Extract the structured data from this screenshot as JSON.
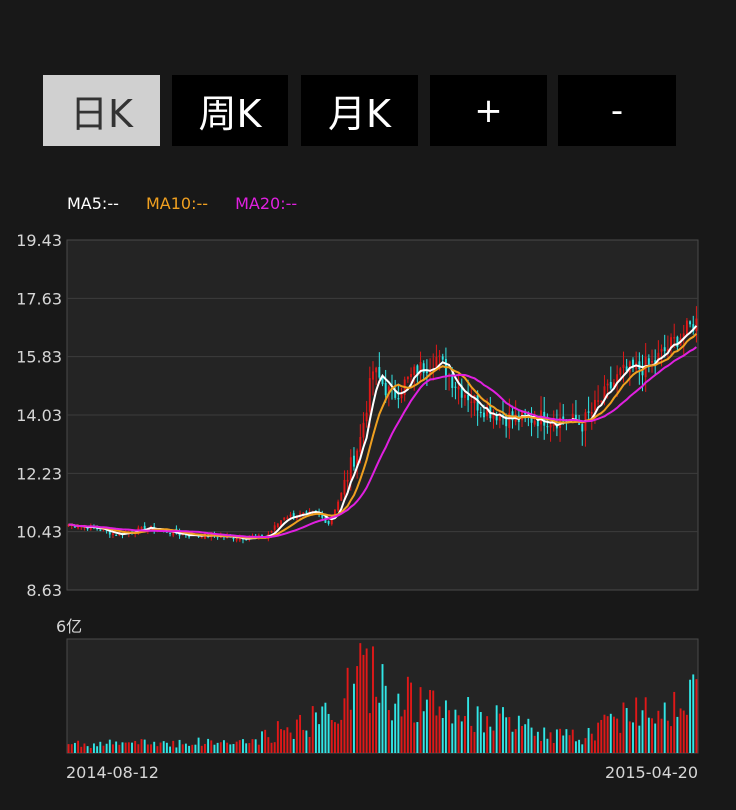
{
  "tabs": [
    {
      "label": "日K",
      "active": true
    },
    {
      "label": "周K",
      "active": false
    },
    {
      "label": "月K",
      "active": false
    },
    {
      "label": "+",
      "active": false
    },
    {
      "label": "-",
      "active": false
    }
  ],
  "legend": {
    "ma5": {
      "label": "MA5:--",
      "color": "#ffffff"
    },
    "ma10": {
      "label": "MA10:--",
      "color": "#f0a020"
    },
    "ma20": {
      "label": "MA20:--",
      "color": "#e020e0"
    }
  },
  "colors": {
    "up": "#e01818",
    "down": "#30e6e6",
    "grid": "#3c3c3c",
    "panel": "#242424",
    "border": "#4a4a4a"
  },
  "chart_data": {
    "type": "candlestick",
    "price_axis": {
      "ticks": [
        "19.43",
        "17.63",
        "15.83",
        "14.03",
        "12.23",
        "10.43",
        "8.63"
      ],
      "ylim": [
        8.63,
        19.43
      ]
    },
    "volume_axis": {
      "max_label": "6亿"
    },
    "x_labels": {
      "start": "2014-08-12",
      "end": "2015-04-20"
    },
    "close_anchors": [
      [
        0,
        10.65
      ],
      [
        8,
        10.55
      ],
      [
        15,
        10.35
      ],
      [
        25,
        10.55
      ],
      [
        35,
        10.35
      ],
      [
        45,
        10.3
      ],
      [
        55,
        10.25
      ],
      [
        62,
        10.25
      ],
      [
        68,
        10.9
      ],
      [
        78,
        11.0
      ],
      [
        82,
        10.7
      ],
      [
        86,
        11.6
      ],
      [
        92,
        13.3
      ],
      [
        96,
        15.4
      ],
      [
        102,
        14.6
      ],
      [
        110,
        15.4
      ],
      [
        116,
        15.8
      ],
      [
        122,
        15.0
      ],
      [
        130,
        14.3
      ],
      [
        140,
        13.9
      ],
      [
        150,
        13.95
      ],
      [
        158,
        13.85
      ],
      [
        162,
        13.75
      ],
      [
        168,
        14.5
      ],
      [
        174,
        15.3
      ],
      [
        184,
        15.6
      ],
      [
        192,
        16.4
      ],
      [
        198,
        16.9
      ]
    ],
    "volume_anchors": [
      [
        0,
        0.08
      ],
      [
        40,
        0.1
      ],
      [
        58,
        0.1
      ],
      [
        66,
        0.2
      ],
      [
        76,
        0.28
      ],
      [
        86,
        0.45
      ],
      [
        92,
        0.75
      ],
      [
        100,
        0.6
      ],
      [
        112,
        0.42
      ],
      [
        124,
        0.38
      ],
      [
        136,
        0.3
      ],
      [
        150,
        0.18
      ],
      [
        162,
        0.14
      ],
      [
        176,
        0.38
      ],
      [
        188,
        0.45
      ],
      [
        198,
        0.52
      ]
    ]
  }
}
